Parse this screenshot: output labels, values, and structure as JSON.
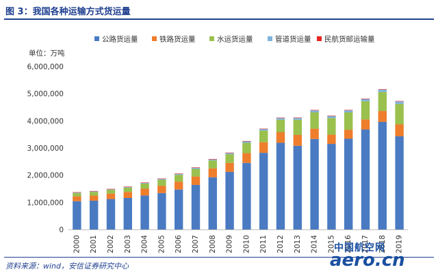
{
  "figure_title": "图 3：我国各种运输方式货运量",
  "source": "资料来源：wind，安信证券研究中心",
  "watermark": {
    "cn": "中国航空网",
    "en": "aero.cn"
  },
  "chart_data": {
    "type": "bar",
    "stacked": true,
    "unit_label": "单位：万吨",
    "categories": [
      "2000",
      "2001",
      "2002",
      "2003",
      "2004",
      "2005",
      "2006",
      "2007",
      "2008",
      "2009",
      "2010",
      "2011",
      "2012",
      "2013",
      "2014",
      "2015",
      "2016",
      "2017",
      "2018",
      "2019"
    ],
    "series": [
      {
        "name": "公路货运量",
        "color": "#4a7bc2",
        "values": [
          1040000,
          1060000,
          1120000,
          1160000,
          1250000,
          1340000,
          1470000,
          1640000,
          1920000,
          2120000,
          2450000,
          2820000,
          3190000,
          3080000,
          3330000,
          3150000,
          3340000,
          3680000,
          3960000,
          3430000
        ]
      },
      {
        "name": "铁路货运量",
        "color": "#ee7d2c",
        "values": [
          180000,
          190000,
          200000,
          220000,
          250000,
          270000,
          290000,
          310000,
          330000,
          330000,
          360000,
          390000,
          390000,
          400000,
          380000,
          340000,
          330000,
          370000,
          400000,
          440000
        ]
      },
      {
        "name": "水运货运量",
        "color": "#9ac04e",
        "values": [
          120000,
          130000,
          140000,
          160000,
          190000,
          220000,
          250000,
          280000,
          290000,
          320000,
          380000,
          430000,
          460000,
          560000,
          600000,
          610000,
          640000,
          670000,
          700000,
          750000
        ]
      },
      {
        "name": "管道货运量",
        "color": "#7fb3dc",
        "values": [
          19000,
          20000,
          20000,
          22000,
          24000,
          31000,
          34000,
          40000,
          39000,
          44000,
          50000,
          58000,
          62000,
          65000,
          73000,
          76000,
          74000,
          81000,
          89000,
          91000
        ]
      },
      {
        "name": "民航货邮运输量",
        "color": "#e8231f",
        "values": [
          196,
          171,
          202,
          219,
          277,
          307,
          349,
          402,
          408,
          446,
          563,
          557,
          545,
          561,
          594,
          629,
          668,
          706,
          739,
          753
        ]
      }
    ],
    "ylim": [
      0,
      6000000
    ],
    "yticks": [
      0,
      1000000,
      2000000,
      3000000,
      4000000,
      5000000,
      6000000
    ],
    "ytick_labels": [
      "0",
      "1,000,000",
      "2,000,000",
      "3,000,000",
      "4,000,000",
      "5,000,000",
      "6,000,000"
    ],
    "legend_position": "top",
    "grid": false
  }
}
